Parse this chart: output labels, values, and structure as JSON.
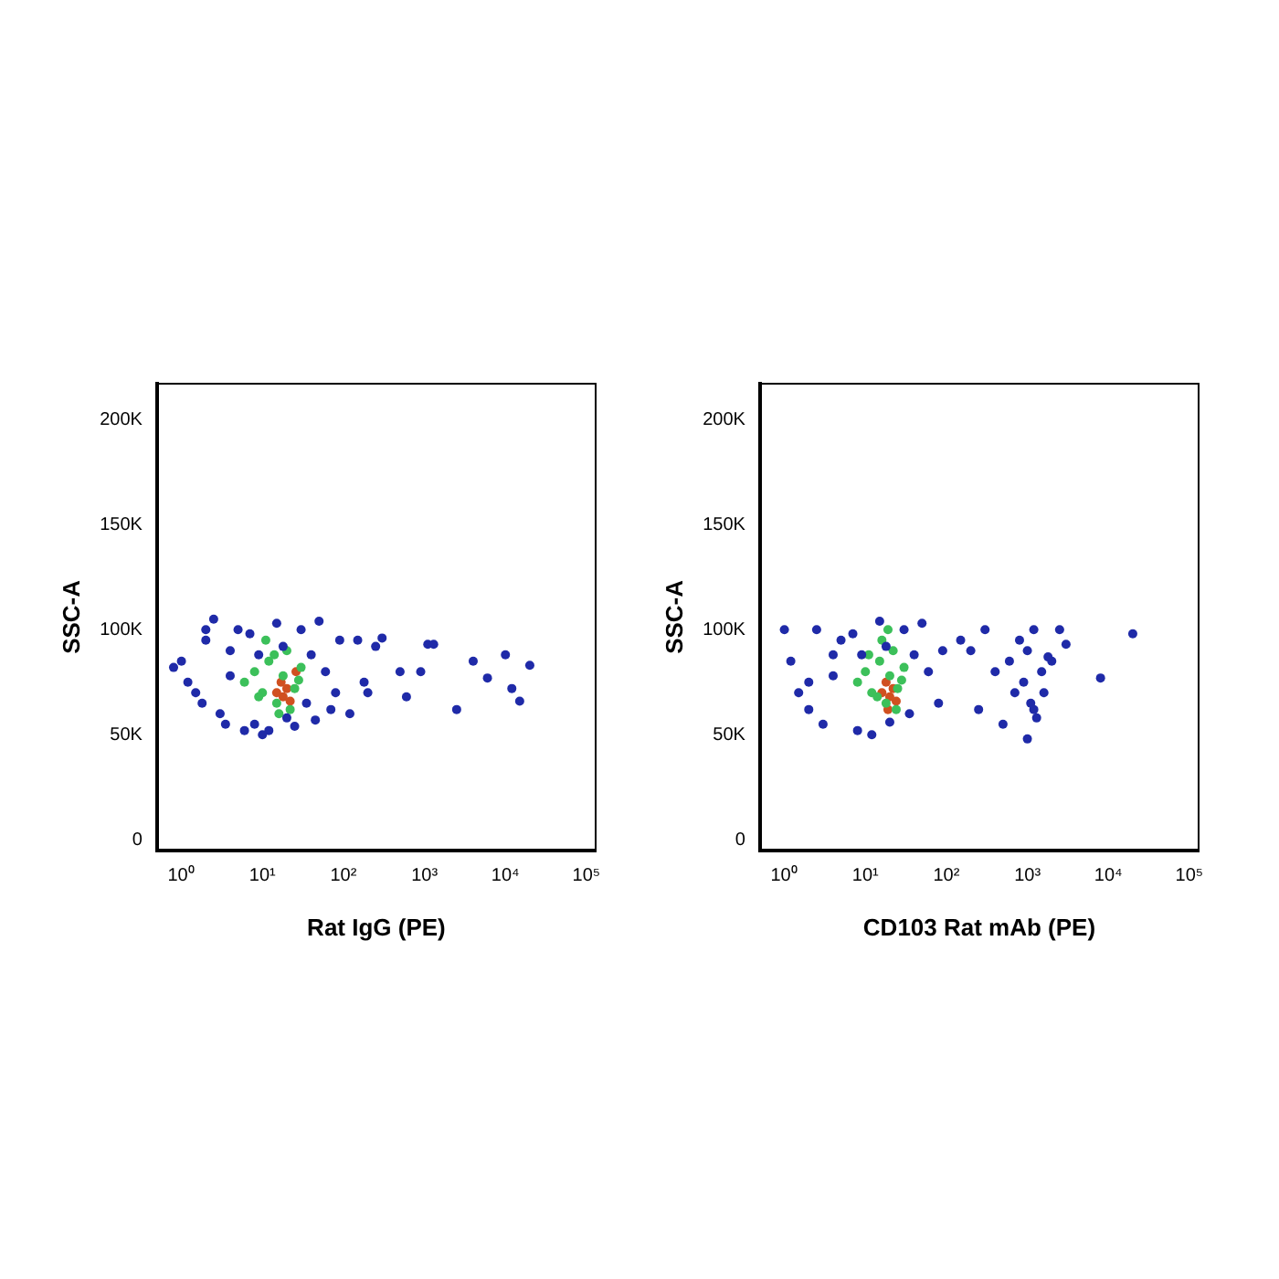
{
  "chart_data": [
    {
      "type": "scatter",
      "xlabel": "Rat IgG (PE)",
      "ylabel": "SSC-A",
      "log": "x",
      "grid": false,
      "legend": false,
      "marker": "circle",
      "xlim": [
        0.5,
        130000
      ],
      "xticks": [
        {
          "value": 1,
          "label": "10⁰"
        },
        {
          "value": 10,
          "label": "10¹"
        },
        {
          "value": 100,
          "label": "10²"
        },
        {
          "value": 1000,
          "label": "10³"
        },
        {
          "value": 10000,
          "label": "10⁴"
        },
        {
          "value": 100000,
          "label": "10⁵"
        }
      ],
      "ylim": [
        -5000,
        217000
      ],
      "yticks": [
        0,
        {
          "value": 50000,
          "label": "50K"
        },
        {
          "value": 100000,
          "label": "100K"
        },
        {
          "value": 150000,
          "label": "150K"
        },
        {
          "value": 200000,
          "label": "200K"
        }
      ],
      "series": [
        {
          "color": "#1f2aa8",
          "x": [
            1,
            1.5,
            2,
            3,
            5,
            8,
            12,
            20,
            35,
            60,
            90,
            1.2,
            2.5,
            4,
            7,
            15,
            30,
            50,
            80,
            0.8,
            1.8,
            3.5,
            6,
            10,
            25,
            45,
            70,
            2,
            4,
            9,
            18,
            40,
            150,
            250,
            300,
            500,
            900,
            1100,
            1300,
            2500,
            4000,
            6000,
            10000,
            12000,
            15000,
            20000,
            120,
            200,
            180,
            600
          ],
          "values": [
            85000,
            70000,
            95000,
            60000,
            100000,
            55000,
            52000,
            58000,
            65000,
            80000,
            95000,
            75000,
            105000,
            90000,
            98000,
            103000,
            100000,
            104000,
            70000,
            82000,
            65000,
            55000,
            52000,
            50000,
            54000,
            57000,
            62000,
            100000,
            78000,
            88000,
            92000,
            88000,
            95000,
            92000,
            96000,
            80000,
            80000,
            93000,
            93000,
            62000,
            85000,
            77000,
            88000,
            72000,
            66000,
            83000,
            60000,
            70000,
            75000,
            68000
          ]
        },
        {
          "color": "#3cc05a",
          "x": [
            6,
            8,
            10,
            12,
            15,
            18,
            20,
            25,
            30,
            9,
            14,
            22,
            28,
            11,
            16
          ],
          "values": [
            75000,
            80000,
            70000,
            85000,
            65000,
            78000,
            90000,
            72000,
            82000,
            68000,
            88000,
            62000,
            76000,
            95000,
            60000
          ]
        },
        {
          "color": "#d05020",
          "x": [
            15,
            18,
            20,
            22,
            26,
            17
          ],
          "values": [
            70000,
            68000,
            72000,
            66000,
            80000,
            75000
          ]
        }
      ]
    },
    {
      "type": "scatter",
      "xlabel": "CD103 Rat mAb (PE)",
      "ylabel": "SSC-A",
      "log": "x",
      "grid": false,
      "legend": false,
      "marker": "circle",
      "xlim": [
        0.5,
        130000
      ],
      "xticks": [
        {
          "value": 1,
          "label": "10⁰"
        },
        {
          "value": 10,
          "label": "10¹"
        },
        {
          "value": 100,
          "label": "10²"
        },
        {
          "value": 1000,
          "label": "10³"
        },
        {
          "value": 10000,
          "label": "10⁴"
        },
        {
          "value": 100000,
          "label": "10⁵"
        }
      ],
      "ylim": [
        -5000,
        217000
      ],
      "yticks": [
        0,
        {
          "value": 50000,
          "label": "50K"
        },
        {
          "value": 100000,
          "label": "100K"
        },
        {
          "value": 150000,
          "label": "150K"
        },
        {
          "value": 200000,
          "label": "200K"
        }
      ],
      "series": [
        {
          "color": "#1f2aa8",
          "x": [
            1,
            1.5,
            2,
            3,
            5,
            8,
            12,
            20,
            35,
            60,
            90,
            1.2,
            2.5,
            4,
            7,
            15,
            30,
            50,
            80,
            2,
            4,
            9,
            18,
            40,
            150,
            200,
            250,
            400,
            300,
            600,
            800,
            1000,
            1200,
            1500,
            2000,
            2500,
            3000,
            700,
            900,
            1100,
            1300,
            1600,
            500,
            1800,
            8000,
            20000,
            1000,
            1200
          ],
          "values": [
            100000,
            70000,
            62000,
            55000,
            95000,
            52000,
            50000,
            56000,
            60000,
            80000,
            90000,
            85000,
            100000,
            88000,
            98000,
            104000,
            100000,
            103000,
            65000,
            75000,
            78000,
            88000,
            92000,
            88000,
            95000,
            90000,
            62000,
            80000,
            100000,
            85000,
            95000,
            90000,
            100000,
            80000,
            85000,
            100000,
            93000,
            70000,
            75000,
            65000,
            58000,
            70000,
            55000,
            87000,
            77000,
            98000,
            48000,
            62000
          ]
        },
        {
          "color": "#3cc05a",
          "x": [
            8,
            10,
            12,
            15,
            18,
            20,
            22,
            25,
            30,
            14,
            16,
            24,
            28,
            11,
            19
          ],
          "values": [
            75000,
            80000,
            70000,
            85000,
            65000,
            78000,
            90000,
            72000,
            82000,
            68000,
            95000,
            62000,
            76000,
            88000,
            100000
          ]
        },
        {
          "color": "#d05020",
          "x": [
            16,
            18,
            20,
            22,
            24,
            19
          ],
          "values": [
            70000,
            75000,
            68000,
            72000,
            66000,
            62000
          ]
        }
      ]
    }
  ]
}
